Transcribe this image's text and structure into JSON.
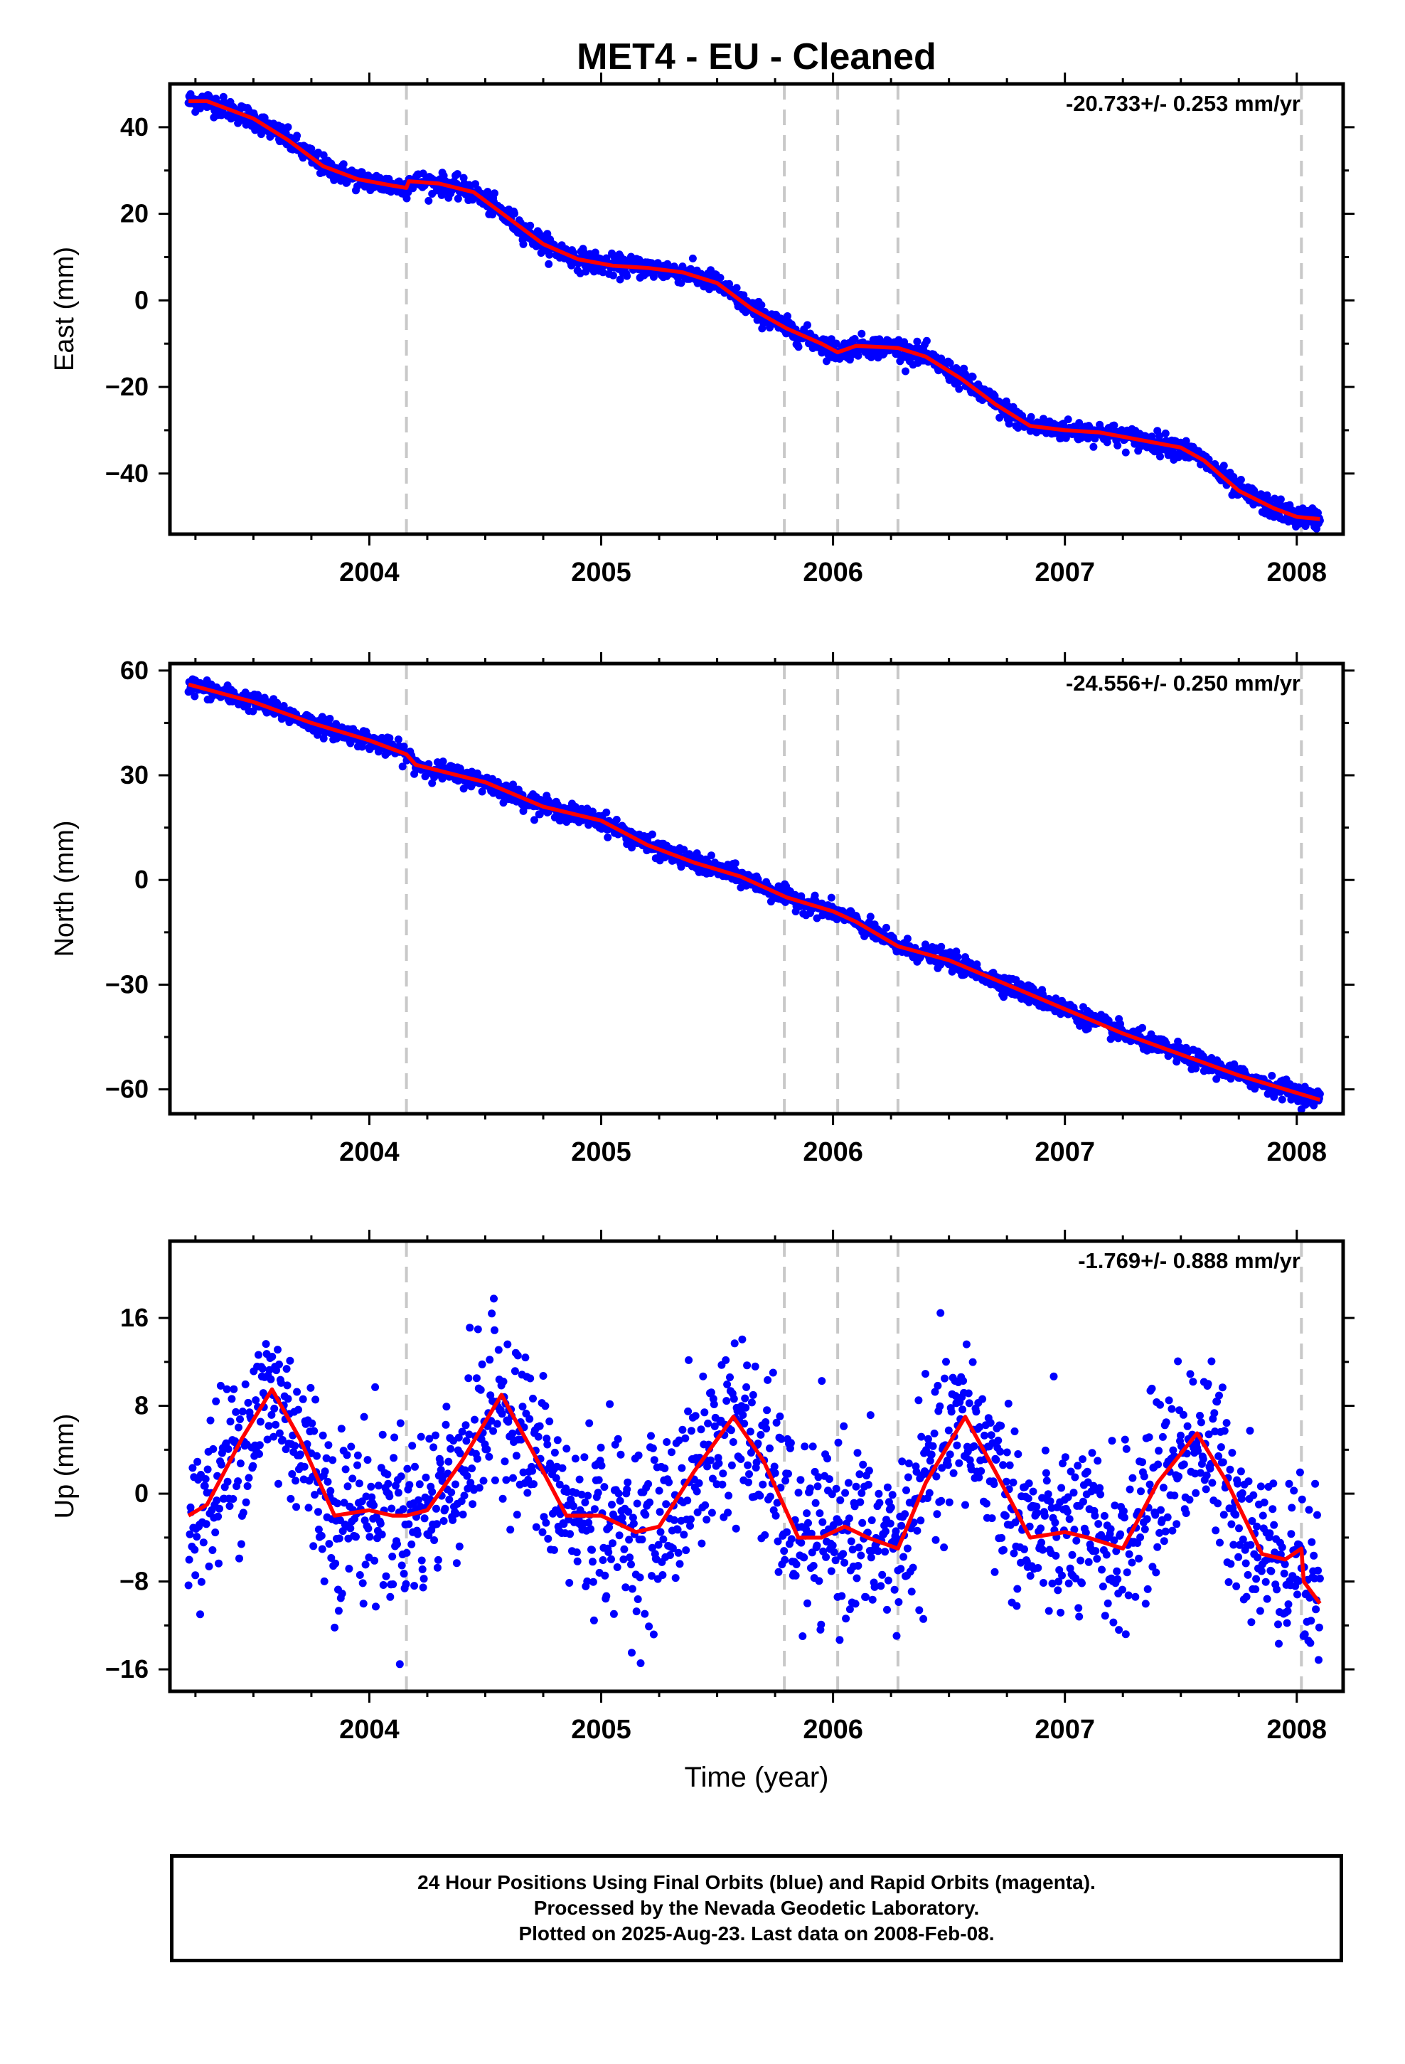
{
  "title": "MET4  - EU - Cleaned",
  "colors": {
    "points": "#0000ff",
    "fit": "#ff0000",
    "steps": "#c8c8c8",
    "frame": "#000000"
  },
  "chart_data": [
    {
      "type": "scatter",
      "component": "east",
      "ylabel": "East (mm)",
      "xlim": [
        2003.14,
        2008.2
      ],
      "ylim": [
        -54,
        50
      ],
      "yticks": [
        40,
        20,
        0,
        -20,
        -40
      ],
      "ytick_labels": [
        "40",
        "20",
        "0",
        "−20",
        "−40"
      ],
      "xticks": [
        2004,
        2005,
        2006,
        2007,
        2008
      ],
      "xtick_labels": [
        "2004",
        "2005",
        "2006",
        "2007",
        "2008"
      ],
      "rate_label": "-20.733+/- 0.253 mm/yr",
      "noise_sd": 1.2,
      "fit_x": [
        2003.22,
        2003.3,
        2003.5,
        2003.65,
        2003.8,
        2003.95,
        2004.1,
        2004.16,
        2004.17,
        2004.3,
        2004.45,
        2004.6,
        2004.75,
        2004.9,
        2005.05,
        2005.2,
        2005.35,
        2005.5,
        2005.65,
        2005.8,
        2005.95,
        2006.02,
        2006.1,
        2006.28,
        2006.4,
        2006.55,
        2006.7,
        2006.85,
        2007.0,
        2007.15,
        2007.3,
        2007.5,
        2007.6,
        2007.75,
        2007.9,
        2008.0,
        2008.1
      ],
      "fit_y": [
        46,
        46,
        42,
        37,
        31,
        28,
        26.5,
        26,
        27.5,
        27,
        25,
        19,
        13,
        9.5,
        8,
        7.5,
        6.5,
        4,
        -2,
        -6.5,
        -10,
        -12,
        -10.5,
        -11,
        -13,
        -18,
        -24,
        -29,
        -30,
        -30.5,
        -32,
        -34,
        -37,
        -44,
        -48,
        -50,
        -50.5
      ]
    },
    {
      "type": "scatter",
      "component": "north",
      "ylabel": "North (mm)",
      "xlim": [
        2003.14,
        2008.2
      ],
      "ylim": [
        -67,
        62
      ],
      "yticks": [
        60,
        30,
        0,
        -30,
        -60
      ],
      "ytick_labels": [
        "60",
        "30",
        "0",
        "−30",
        "−60"
      ],
      "xticks": [
        2004,
        2005,
        2006,
        2007,
        2008
      ],
      "xtick_labels": [
        "2004",
        "2005",
        "2006",
        "2007",
        "2008"
      ],
      "rate_label": "-24.556+/- 0.250 mm/yr",
      "noise_sd": 1.3,
      "fit_x": [
        2003.22,
        2003.5,
        2003.75,
        2004.0,
        2004.16,
        2004.2,
        2004.5,
        2004.75,
        2005.0,
        2005.2,
        2005.4,
        2005.6,
        2005.8,
        2006.0,
        2006.1,
        2006.28,
        2006.5,
        2006.75,
        2007.0,
        2007.25,
        2007.5,
        2007.75,
        2008.0,
        2008.1
      ],
      "fit_y": [
        56,
        51,
        45,
        40,
        36,
        33,
        28,
        21,
        17,
        10,
        5,
        1,
        -5,
        -9,
        -12,
        -19,
        -23,
        -30,
        -37,
        -44,
        -50,
        -56,
        -61,
        -63
      ]
    },
    {
      "type": "scatter",
      "component": "up",
      "ylabel": "Up (mm)",
      "xlabel": "Time (year)",
      "xlim": [
        2003.14,
        2008.2
      ],
      "ylim": [
        -18,
        23
      ],
      "yticks": [
        16,
        8,
        0,
        -8,
        -16
      ],
      "ytick_labels": [
        "16",
        "8",
        "0",
        "−8",
        "−16"
      ],
      "xticks": [
        2004,
        2005,
        2006,
        2007,
        2008
      ],
      "xtick_labels": [
        "2004",
        "2005",
        "2006",
        "2007",
        "2008"
      ],
      "rate_label": "-1.769+/- 0.888 mm/yr",
      "noise_sd": 4.0,
      "fit_x": [
        2003.22,
        2003.3,
        2003.45,
        2003.58,
        2003.7,
        2003.85,
        2004.0,
        2004.1,
        2004.16,
        2004.25,
        2004.4,
        2004.57,
        2004.7,
        2004.85,
        2005.0,
        2005.15,
        2005.25,
        2005.4,
        2005.57,
        2005.7,
        2005.85,
        2005.95,
        2006.05,
        2006.15,
        2006.28,
        2006.4,
        2006.57,
        2006.7,
        2006.85,
        2007.0,
        2007.1,
        2007.25,
        2007.4,
        2007.57,
        2007.7,
        2007.85,
        2007.95,
        2008.02,
        2008.03,
        2008.1
      ],
      "fit_y": [
        -2,
        -1,
        5,
        9.5,
        5,
        -2,
        -1.5,
        -2,
        -2,
        -1.5,
        3,
        9,
        4,
        -2,
        -2,
        -3.5,
        -3,
        2,
        7,
        3,
        -4,
        -4,
        -3,
        -4,
        -5,
        1,
        7,
        2,
        -4,
        -3.5,
        -4,
        -5,
        1,
        5.5,
        1,
        -5.5,
        -6,
        -5,
        -8,
        -10
      ]
    }
  ],
  "step_lines": [
    2004.16,
    2005.79,
    2006.02,
    2006.28,
    2008.02
  ],
  "footer": {
    "line1": "24 Hour Positions Using Final Orbits (blue) and Rapid Orbits (magenta).",
    "line2": "Processed by the Nevada Geodetic Laboratory.",
    "line3": "Plotted on 2025-Aug-23. Last data on 2008-Feb-08."
  }
}
